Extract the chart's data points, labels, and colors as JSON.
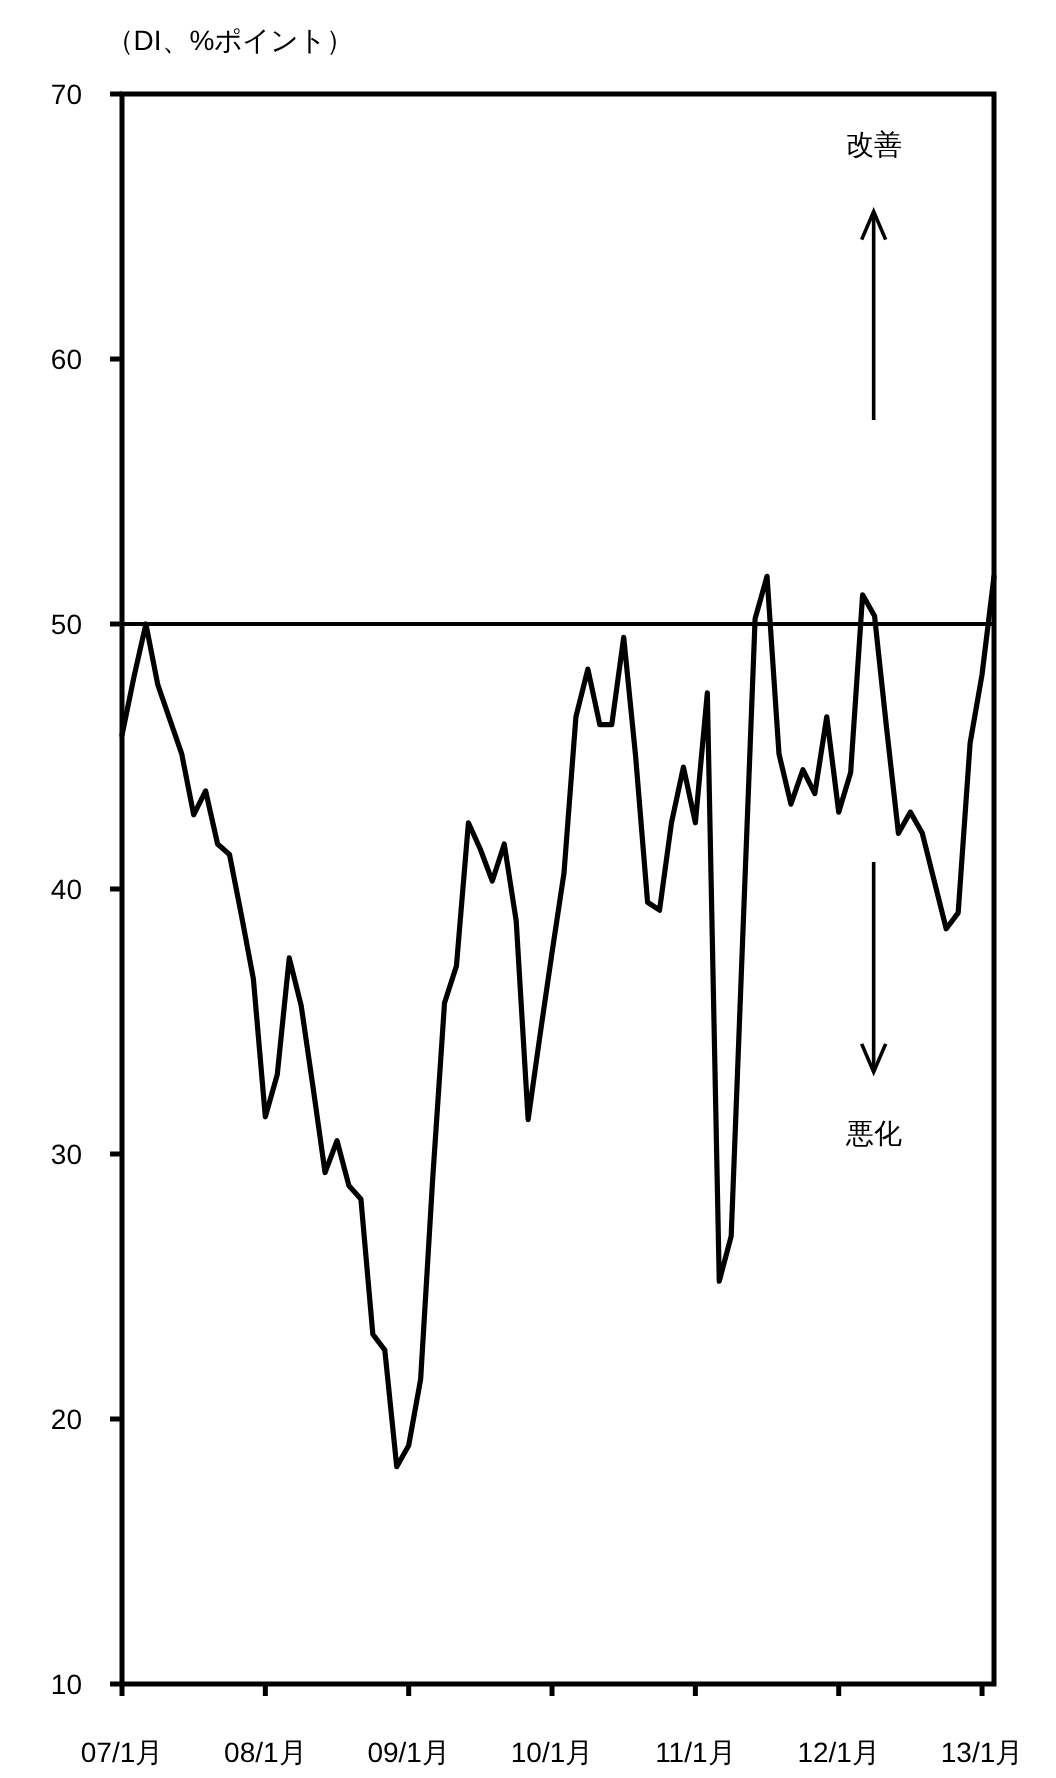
{
  "chart_data": {
    "type": "line",
    "ylabel": "（DI、%ポイント）",
    "categories": [
      "07/1月",
      null,
      null,
      null,
      null,
      null,
      null,
      null,
      null,
      null,
      null,
      null,
      "08/1月",
      null,
      null,
      null,
      null,
      null,
      null,
      null,
      null,
      null,
      null,
      null,
      "09/1月",
      null,
      null,
      null,
      null,
      null,
      null,
      null,
      null,
      null,
      null,
      null,
      "10/1月",
      null,
      null,
      null,
      null,
      null,
      null,
      null,
      null,
      null,
      null,
      null,
      "11/1月",
      null,
      null,
      null,
      null,
      null,
      null,
      null,
      null,
      null,
      null,
      null,
      "12/1月",
      null,
      null,
      null,
      null,
      null,
      null,
      null,
      null,
      null,
      null,
      null,
      "13/1月",
      null
    ],
    "series": [
      {
        "color": "#000000",
        "values": [
          45.8,
          48,
          50.0,
          47.7,
          46.4,
          45.1,
          42.8,
          43.7,
          41.7,
          41.3,
          39,
          36.6,
          31.4,
          33.0,
          37.4,
          35.6,
          32.5,
          29.3,
          30.5,
          28.8,
          28.3,
          23.2,
          22.6,
          18.2,
          19.0,
          21.5,
          29,
          35.7,
          37.1,
          42.5,
          41.5,
          40.3,
          41.7,
          38.8,
          31.3,
          34.5,
          37.6,
          40.6,
          46.5,
          48.3,
          46.2,
          46.2,
          49.5,
          45.0,
          39.5,
          39.2,
          42.5,
          44.6,
          42.5,
          47.4,
          25.2,
          26.9,
          38.6,
          50.2,
          51.8,
          45.1,
          43.2,
          44.5,
          43.6,
          46.5,
          42.9,
          44.4,
          51.1,
          50.3,
          46.1,
          42.1,
          42.9,
          42.1,
          40.3,
          38.5,
          39.1,
          45.5,
          48.1,
          51.8
        ]
      }
    ],
    "ylim": [
      10,
      70
    ],
    "yticks": [
      10,
      20,
      30,
      40,
      50,
      60,
      70
    ],
    "ref_lines": [
      {
        "axis": "y",
        "value": 50,
        "color": "#000000"
      }
    ],
    "annotations": [
      "改善",
      "悪化"
    ],
    "grid": false,
    "marker": "none",
    "line_style": "solid"
  }
}
